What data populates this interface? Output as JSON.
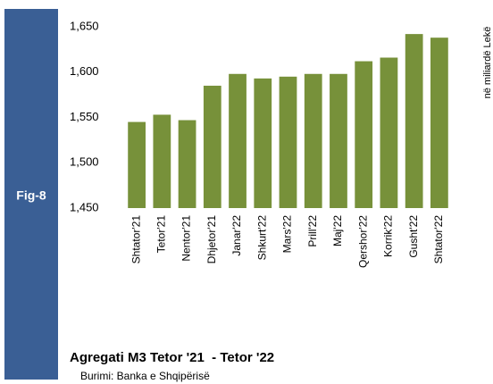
{
  "chart_data": {
    "type": "bar",
    "figure_label": "Fig-8",
    "title": "Agregati M3 Tetor '21  - Tetor '22",
    "source": "Burimi: Banka e Shqipërisë",
    "y_axis_label": "në miliardë Lekë",
    "categories": [
      "Shtator'21",
      "Tetor'21",
      "Nentor'21",
      "Dhjetor'21",
      "Janar'22",
      "Shkurt'22",
      "Mars'22",
      "Prill'22",
      "Maj'22",
      "Qershor'22",
      "Korrik'22",
      "Gusht'22",
      "Shtator'22"
    ],
    "values": [
      1545,
      1553,
      1547,
      1585,
      1598,
      1593,
      1595,
      1598,
      1598,
      1612,
      1616,
      1642,
      1638
    ],
    "color": "#77913a",
    "ylim": [
      1450,
      1650
    ],
    "yticks": [
      {
        "value": 1450,
        "label": "1,450"
      },
      {
        "value": 1500,
        "label": "1,500"
      },
      {
        "value": 1550,
        "label": "1,550"
      },
      {
        "value": 1600,
        "label": "1,600"
      },
      {
        "value": 1650,
        "label": "1,650"
      }
    ]
  }
}
